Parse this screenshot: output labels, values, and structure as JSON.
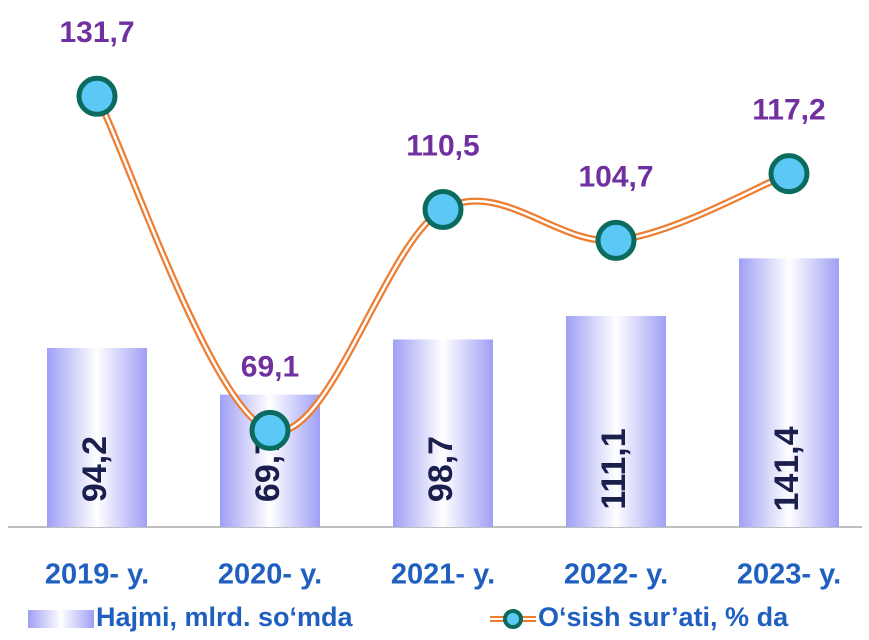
{
  "chart_data": {
    "type": "bar-line",
    "categories": [
      "2019- y.",
      "2020- y.",
      "2021- y.",
      "2022- y.",
      "2023- y."
    ],
    "series": [
      {
        "name": "Hajmi, mlrd. so‘mda",
        "type": "bar",
        "color": "#9f9ff5",
        "values": [
          94.2,
          69.7,
          98.7,
          111.1,
          141.4
        ],
        "value_labels": [
          "94,2",
          "69,7",
          "98,7",
          "111,1",
          "141,4"
        ]
      },
      {
        "name": "O‘sish sur’ati, % da",
        "type": "line",
        "axis": "y2",
        "color": "#ed7d31",
        "marker_color": "#5bc8f5",
        "values": [
          131.7,
          69.1,
          110.5,
          104.7,
          117.2
        ],
        "value_labels": [
          "131,7",
          "69,1",
          "110,5",
          "104,7",
          "117,2"
        ]
      }
    ],
    "ylim": [
      0,
      250
    ],
    "y2lim": [
      51,
      140
    ],
    "legend": "bottom"
  }
}
